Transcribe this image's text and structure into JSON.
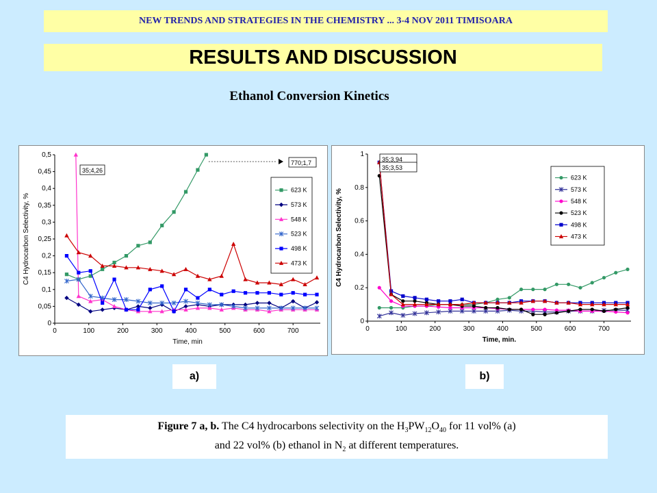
{
  "header": {
    "banner": "NEW TRENDS AND STRATEGIES IN THE CHEMISTRY ... 3-4 NOV 2011 TIMISOARA",
    "section_title": "RESULTS AND DISCUSSION",
    "subtitle": "Ethanol Conversion Kinetics"
  },
  "labels": {
    "a": "a)",
    "b": "b)"
  },
  "caption": {
    "bold": "Figure 7 a, b.",
    "text1": " The C4 hydrocarbons selectivity on the H",
    "s1": "3",
    "t2": "PW",
    "s2": "12",
    "t3": "O",
    "s3": "40",
    "t4": " for 11 vol% (a)",
    "line2a": "and 22 vol% (b) ethanol in N",
    "s4": "2",
    "line2b": " at different temperatures."
  },
  "chart_data": [
    {
      "type": "line",
      "xlabel": "Time, min",
      "ylabel": "C4 Hydrocarbon Selectivity, %",
      "xlim": [
        0,
        780
      ],
      "ylim": [
        0,
        0.5
      ],
      "xticks": [
        0,
        100,
        200,
        300,
        400,
        500,
        600,
        700
      ],
      "yticks": [
        0,
        0.05,
        0.1,
        0.15,
        0.2,
        0.25,
        0.3,
        0.35,
        0.4,
        0.45,
        0.5
      ],
      "legend": "right",
      "annotations": [
        {
          "text": "35;4,26",
          "x": 65,
          "y": 0.44
        },
        {
          "text": "770;1,7",
          "x": 680,
          "y": 0.475
        }
      ],
      "series": [
        {
          "name": "623 K",
          "color": "#339966",
          "marker": "square",
          "x": [
            35,
            70,
            105,
            140,
            175,
            210,
            245,
            280,
            315,
            350,
            385,
            420,
            445
          ],
          "y": [
            0.145,
            0.13,
            0.14,
            0.16,
            0.18,
            0.2,
            0.23,
            0.24,
            0.29,
            0.33,
            0.39,
            0.455,
            0.5
          ]
        },
        {
          "name": "573 K",
          "color": "#000080",
          "marker": "diamond",
          "x": [
            35,
            70,
            105,
            140,
            175,
            210,
            245,
            280,
            315,
            350,
            385,
            420,
            455,
            490,
            525,
            560,
            595,
            630,
            665,
            700,
            735,
            770
          ],
          "y": [
            0.075,
            0.055,
            0.035,
            0.04,
            0.045,
            0.04,
            0.05,
            0.045,
            0.055,
            0.035,
            0.05,
            0.055,
            0.05,
            0.055,
            0.055,
            0.055,
            0.06,
            0.06,
            0.045,
            0.065,
            0.045,
            0.062
          ]
        },
        {
          "name": "548 K",
          "color": "#ff33cc",
          "marker": "triangle",
          "x": [
            62,
            70,
            105,
            140,
            175,
            210,
            245,
            280,
            315,
            350,
            385,
            420,
            455,
            490,
            525,
            560,
            595,
            630,
            665,
            700,
            735,
            770
          ],
          "y": [
            0.5,
            0.08,
            0.065,
            0.07,
            0.05,
            0.04,
            0.035,
            0.035,
            0.035,
            0.04,
            0.04,
            0.045,
            0.045,
            0.04,
            0.045,
            0.04,
            0.04,
            0.035,
            0.04,
            0.04,
            0.04,
            0.04
          ]
        },
        {
          "name": "523 K",
          "color": "#3366cc",
          "marker": "star",
          "x": [
            35,
            70,
            105,
            140,
            175,
            210,
            245,
            280,
            315,
            350,
            385,
            420,
            455,
            490,
            525,
            560,
            595,
            630,
            665,
            700,
            735,
            770
          ],
          "y": [
            0.125,
            0.13,
            0.08,
            0.075,
            0.07,
            0.07,
            0.065,
            0.06,
            0.06,
            0.06,
            0.065,
            0.06,
            0.055,
            0.055,
            0.05,
            0.045,
            0.045,
            0.045,
            0.045,
            0.045,
            0.045,
            0.045
          ]
        },
        {
          "name": "498 K",
          "color": "#0000ff",
          "marker": "square",
          "x": [
            35,
            70,
            105,
            140,
            175,
            210,
            245,
            280,
            315,
            350,
            385,
            420,
            455,
            490,
            525,
            560,
            595,
            630,
            665,
            700,
            735,
            770
          ],
          "y": [
            0.2,
            0.15,
            0.155,
            0.06,
            0.13,
            0.04,
            0.04,
            0.1,
            0.11,
            0.035,
            0.1,
            0.075,
            0.1,
            0.085,
            0.095,
            0.09,
            0.09,
            0.09,
            0.085,
            0.09,
            0.085,
            0.085
          ]
        },
        {
          "name": "473 K",
          "color": "#cc0000",
          "marker": "triangle",
          "x": [
            35,
            70,
            105,
            140,
            175,
            210,
            245,
            280,
            315,
            350,
            385,
            420,
            455,
            490,
            525,
            560,
            595,
            630,
            665,
            700,
            735,
            770
          ],
          "y": [
            0.26,
            0.21,
            0.2,
            0.17,
            0.17,
            0.165,
            0.165,
            0.16,
            0.155,
            0.145,
            0.16,
            0.14,
            0.13,
            0.14,
            0.235,
            0.13,
            0.12,
            0.12,
            0.115,
            0.13,
            0.115,
            0.135
          ]
        }
      ]
    },
    {
      "type": "line",
      "xlabel": "Time, min.",
      "ylabel": "C4 Hydrocarbon Selectivity, %",
      "xlim": [
        0,
        780
      ],
      "ylim": [
        0,
        1
      ],
      "xticks": [
        0,
        100,
        200,
        300,
        400,
        500,
        600,
        700
      ],
      "yticks": [
        0,
        0.2,
        0.4,
        0.6,
        0.8,
        1
      ],
      "legend": "right",
      "annotations": [
        {
          "text": "35;3,94",
          "x": 40,
          "y": 0.97
        },
        {
          "text": "35;3,53",
          "x": 40,
          "y": 0.9
        }
      ],
      "series": [
        {
          "name": "623 K",
          "color": "#339966",
          "marker": "circle",
          "x": [
            35,
            70,
            105,
            140,
            175,
            210,
            245,
            280,
            315,
            350,
            385,
            420,
            455,
            490,
            525,
            560,
            595,
            630,
            665,
            700,
            735,
            770
          ],
          "y": [
            0.08,
            0.08,
            0.08,
            0.09,
            0.09,
            0.1,
            0.1,
            0.1,
            0.1,
            0.11,
            0.13,
            0.14,
            0.19,
            0.19,
            0.19,
            0.22,
            0.22,
            0.2,
            0.23,
            0.26,
            0.29,
            0.31
          ]
        },
        {
          "name": "573 K",
          "color": "#333399",
          "marker": "star",
          "x": [
            35,
            70,
            105,
            140,
            175,
            210,
            245,
            280,
            315,
            350,
            385,
            420,
            455,
            490,
            525,
            560,
            595,
            630,
            665,
            700,
            735,
            770
          ],
          "y": [
            0.03,
            0.05,
            0.035,
            0.045,
            0.05,
            0.055,
            0.06,
            0.06,
            0.06,
            0.06,
            0.06,
            0.065,
            0.06,
            0.06,
            0.055,
            0.055,
            0.06,
            0.06,
            0.06,
            0.065,
            0.065,
            0.065
          ]
        },
        {
          "name": "548 K",
          "color": "#ff00cc",
          "marker": "circle",
          "x": [
            35,
            70,
            105,
            140,
            175,
            210,
            245,
            280,
            315,
            350,
            385,
            420,
            455,
            490,
            525,
            560,
            595,
            630,
            665,
            700,
            735,
            770
          ],
          "y": [
            0.2,
            0.12,
            0.09,
            0.09,
            0.09,
            0.085,
            0.08,
            0.08,
            0.08,
            0.08,
            0.075,
            0.07,
            0.07,
            0.07,
            0.07,
            0.065,
            0.065,
            0.06,
            0.06,
            0.06,
            0.055,
            0.05
          ]
        },
        {
          "name": "523 K",
          "color": "#000000",
          "marker": "circle",
          "x": [
            35,
            70,
            105,
            140,
            175,
            210,
            245,
            280,
            315,
            350,
            385,
            420,
            455,
            490,
            525,
            560,
            595,
            630,
            665,
            700,
            735,
            770
          ],
          "y": [
            0.87,
            0.16,
            0.12,
            0.12,
            0.11,
            0.1,
            0.1,
            0.09,
            0.09,
            0.08,
            0.08,
            0.07,
            0.07,
            0.04,
            0.04,
            0.05,
            0.06,
            0.07,
            0.07,
            0.06,
            0.07,
            0.08
          ]
        },
        {
          "name": "498 K",
          "color": "#0000cc",
          "marker": "square",
          "x": [
            35,
            70,
            105,
            140,
            175,
            210,
            245,
            280,
            315,
            350,
            385,
            420,
            455,
            490,
            525,
            560,
            595,
            630,
            665,
            700,
            735,
            770
          ],
          "y": [
            0.95,
            0.18,
            0.15,
            0.14,
            0.13,
            0.12,
            0.12,
            0.13,
            0.11,
            0.11,
            0.11,
            0.11,
            0.12,
            0.12,
            0.12,
            0.11,
            0.11,
            0.11,
            0.11,
            0.11,
            0.11,
            0.11
          ]
        },
        {
          "name": "473 K",
          "color": "#cc0000",
          "marker": "triangle",
          "x": [
            35,
            70,
            105,
            140,
            175,
            210,
            245,
            280,
            315,
            350,
            385,
            420,
            455,
            490,
            525,
            560,
            595,
            630,
            665,
            700,
            735,
            770
          ],
          "y": [
            0.95,
            0.16,
            0.1,
            0.1,
            0.1,
            0.1,
            0.1,
            0.1,
            0.11,
            0.11,
            0.11,
            0.11,
            0.11,
            0.12,
            0.12,
            0.11,
            0.11,
            0.1,
            0.1,
            0.1,
            0.1,
            0.1
          ]
        }
      ]
    }
  ]
}
